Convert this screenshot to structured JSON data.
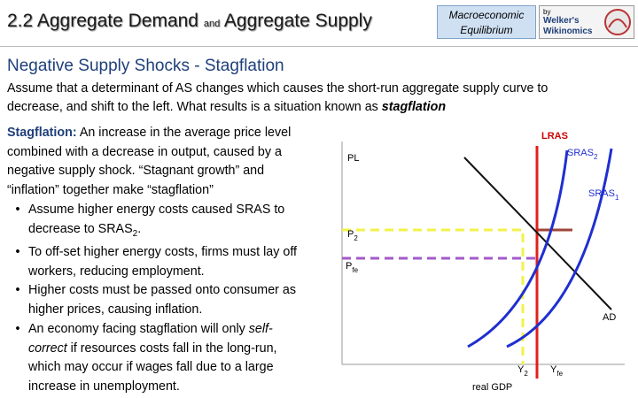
{
  "header": {
    "title_left": "2.2 Aggregate Demand",
    "title_and": "and",
    "title_right": "Aggregate Supply",
    "box": [
      "Macroeconomic",
      "Equilibrium"
    ],
    "logo": [
      "by",
      "Welker's",
      "Wikinomics"
    ]
  },
  "heading": "Negative Supply Shocks - Stagflation",
  "intro": {
    "lines": [
      "Assume that a determinant of AS changes which causes the short-run aggregate supply curve to",
      "decrease, and shift to the left. What results is a situation known as "
    ],
    "emphasis": "stagflation"
  },
  "definition": {
    "term": "Stagflation:",
    "lines": [
      " An increase in the average price level",
      "combined with a decrease in output, caused by a",
      "negative supply shock. “Stagnant growth” and",
      "“inflation” together make “stagflation”"
    ]
  },
  "bullets": [
    {
      "lines": [
        [
          "Assume higher energy costs caused SRAS to"
        ],
        [
          "decrease to SRAS",
          "2",
          "."
        ]
      ]
    },
    {
      "lines": [
        [
          "To off-set higher energy costs, firms must lay off"
        ],
        [
          "workers, reducing employment."
        ]
      ]
    },
    {
      "lines": [
        [
          "Higher costs must be passed onto consumer as"
        ],
        [
          "higher prices, causing inflation."
        ]
      ]
    },
    {
      "lines": [
        [
          "An economy facing stagflation will only ",
          "self-"
        ],
        [
          "correct",
          " if resources costs fall in the long-run,"
        ],
        [
          "which may occur if wages fall due to a large"
        ],
        [
          "increase in unemployment."
        ]
      ]
    }
  ],
  "diagram": {
    "y_axis": "PL",
    "x_axis": "real GDP",
    "lras": "LRAS",
    "sras2": [
      "SRAS",
      "2"
    ],
    "sras1": [
      "SRAS",
      "1"
    ],
    "ad": "AD",
    "p2": [
      "P",
      "2"
    ],
    "pfe": [
      "P",
      "fe"
    ],
    "y2": [
      "Y",
      "2"
    ],
    "yfe": [
      "Y",
      "fe"
    ]
  }
}
